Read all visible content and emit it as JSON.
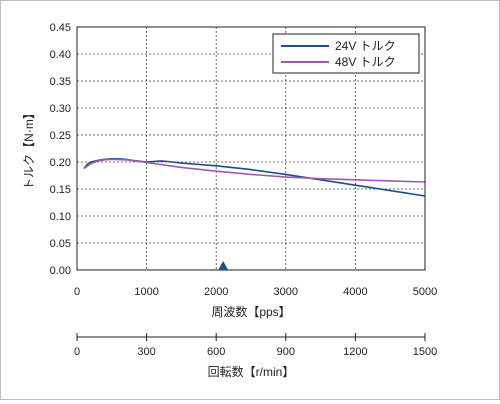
{
  "chart_data": {
    "type": "line",
    "xlabel": "周波数【pps】",
    "ylabel": "トルク【N·m】",
    "xlim": [
      0,
      5000
    ],
    "ylim": [
      0,
      0.45
    ],
    "x_ticks": [
      "0",
      "1000",
      "2000",
      "3000",
      "4000",
      "5000"
    ],
    "y_ticks": [
      "0.00",
      "0.05",
      "0.10",
      "0.15",
      "0.20",
      "0.25",
      "0.30",
      "0.35",
      "0.40",
      "0.45"
    ],
    "grid": true,
    "legend_position": "top-right",
    "marker": {
      "x": 2100,
      "shape": "triangle",
      "color": "#1f4e8c"
    },
    "series": [
      {
        "name": "24V トルク",
        "color": "#1f4e8c",
        "x": [
          100,
          150,
          200,
          300,
          400,
          500,
          600,
          700,
          800,
          1000,
          1100,
          1200,
          1300,
          1500,
          2000,
          2500,
          3000,
          3500,
          4000,
          4500,
          5000
        ],
        "y": [
          0.188,
          0.196,
          0.2,
          0.203,
          0.205,
          0.206,
          0.206,
          0.205,
          0.203,
          0.2,
          0.201,
          0.202,
          0.201,
          0.198,
          0.193,
          0.186,
          0.177,
          0.167,
          0.157,
          0.147,
          0.137
        ]
      },
      {
        "name": "48V トルク",
        "color": "#a15aa7",
        "x": [
          100,
          200,
          300,
          400,
          500,
          700,
          900,
          1000,
          1500,
          2000,
          2500,
          3000,
          3500,
          4000,
          4500,
          5000
        ],
        "y": [
          0.188,
          0.197,
          0.202,
          0.204,
          0.205,
          0.204,
          0.201,
          0.199,
          0.19,
          0.183,
          0.177,
          0.172,
          0.169,
          0.167,
          0.165,
          0.163
        ]
      }
    ],
    "secondary_axis": {
      "label": "回転数【r/min】",
      "lim": [
        0,
        1500
      ],
      "ticks": [
        "0",
        "300",
        "600",
        "900",
        "1200",
        "1500"
      ]
    }
  }
}
